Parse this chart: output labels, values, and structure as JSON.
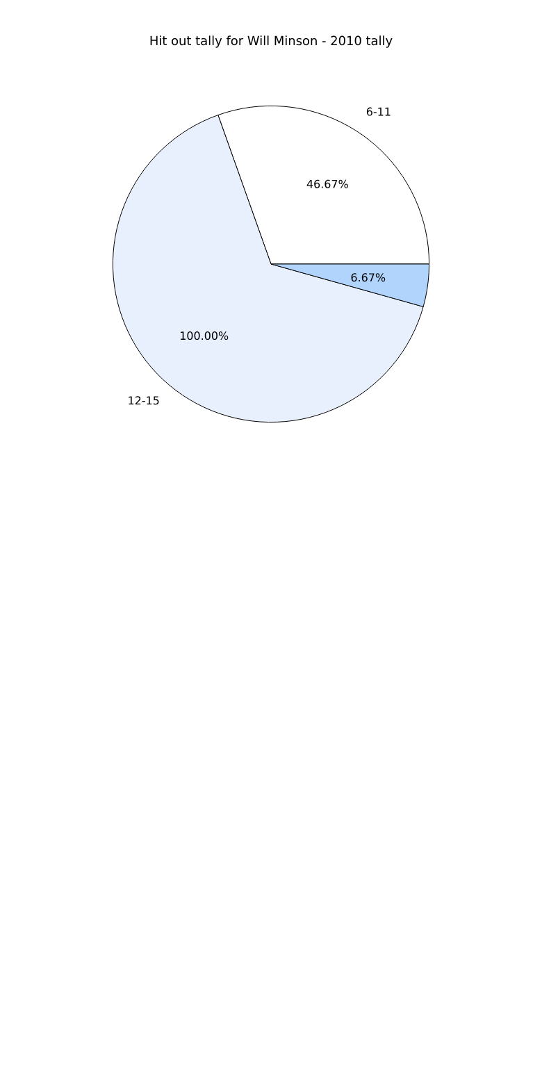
{
  "chart_data": {
    "type": "pie",
    "title": "Hit out tally for Will Minson - 2010 tally",
    "categories": [
      "6-11",
      "12-15",
      null
    ],
    "values": [
      46.67,
      100.0,
      6.67
    ],
    "value_labels": [
      "46.67%",
      "100.00%",
      "6.67%"
    ],
    "colors": [
      "#ffffff",
      "#e8f0fe",
      "#b0d4fb"
    ]
  }
}
